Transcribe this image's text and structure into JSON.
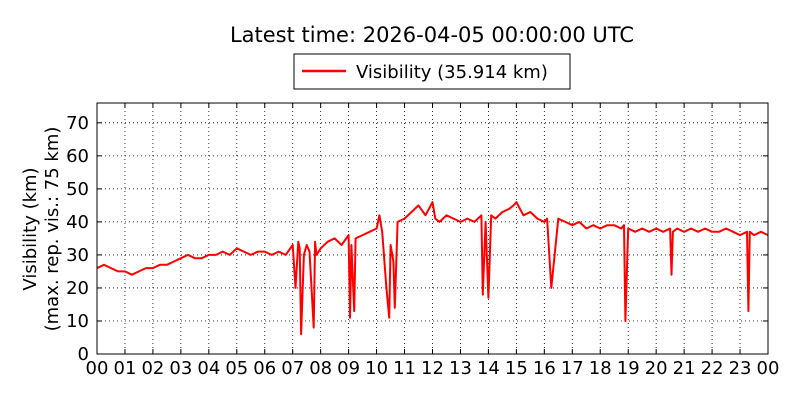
{
  "chart_data": {
    "type": "line",
    "title": "Latest time: 2026-04-05 00:00:00 UTC",
    "xlabel": "",
    "ylabel": [
      "Visibility (km)",
      "(max. rep. vis.: 75 km)"
    ],
    "xlim": [
      0,
      24
    ],
    "ylim": [
      0,
      76
    ],
    "x_ticks": [
      "00",
      "01",
      "02",
      "03",
      "04",
      "05",
      "06",
      "07",
      "08",
      "09",
      "10",
      "11",
      "12",
      "13",
      "14",
      "15",
      "16",
      "17",
      "18",
      "19",
      "20",
      "21",
      "22",
      "23",
      "00"
    ],
    "y_ticks": [
      0,
      10,
      20,
      30,
      40,
      50,
      60,
      70
    ],
    "grid": true,
    "legend": {
      "position": "top-center",
      "entries": [
        "Visibility (35.914 km)"
      ]
    },
    "series": [
      {
        "name": "Visibility (35.914 km)",
        "color": "#ff0000",
        "x": [
          0.0,
          0.25,
          0.5,
          0.75,
          1.0,
          1.25,
          1.5,
          1.75,
          2.0,
          2.25,
          2.5,
          2.75,
          3.0,
          3.25,
          3.5,
          3.75,
          4.0,
          4.25,
          4.5,
          4.75,
          5.0,
          5.25,
          5.5,
          5.75,
          6.0,
          6.25,
          6.5,
          6.75,
          7.0,
          7.1,
          7.2,
          7.25,
          7.3,
          7.4,
          7.5,
          7.6,
          7.75,
          7.8,
          7.85,
          8.0,
          8.25,
          8.5,
          8.75,
          9.0,
          9.05,
          9.1,
          9.2,
          9.25,
          9.5,
          9.75,
          10.0,
          10.1,
          10.2,
          10.35,
          10.45,
          10.5,
          10.6,
          10.65,
          10.75,
          11.0,
          11.25,
          11.5,
          11.75,
          12.0,
          12.1,
          12.25,
          12.5,
          12.75,
          13.0,
          13.25,
          13.5,
          13.75,
          13.8,
          13.9,
          14.0,
          14.1,
          14.25,
          14.5,
          14.75,
          14.9,
          15.0,
          15.25,
          15.5,
          15.75,
          16.0,
          16.1,
          16.25,
          16.5,
          16.75,
          17.0,
          17.25,
          17.5,
          17.75,
          18.0,
          18.25,
          18.5,
          18.75,
          18.85,
          18.9,
          19.0,
          19.25,
          19.5,
          19.75,
          20.0,
          20.25,
          20.5,
          20.55,
          20.6,
          20.75,
          21.0,
          21.25,
          21.5,
          21.75,
          22.0,
          22.25,
          22.5,
          22.75,
          23.0,
          23.25,
          23.3,
          23.35,
          23.5,
          23.75,
          24.0
        ],
        "y": [
          26,
          27,
          26,
          25,
          25,
          24,
          25,
          26,
          26,
          27,
          27,
          28,
          29,
          30,
          29,
          29,
          30,
          30,
          31,
          30,
          32,
          31,
          30,
          31,
          31,
          30,
          31,
          30,
          33,
          20,
          34,
          32,
          6,
          30,
          33,
          31,
          8,
          34,
          30,
          32,
          34,
          35,
          33,
          36,
          11,
          33,
          13,
          35,
          36,
          37,
          38,
          42,
          37,
          20,
          11,
          33,
          28,
          14,
          40,
          41,
          43,
          45,
          42,
          46,
          41,
          40,
          42,
          41,
          40,
          41,
          40,
          42,
          18,
          40,
          17,
          42,
          41,
          43,
          44,
          45,
          46,
          42,
          43,
          41,
          40,
          41,
          20,
          41,
          40,
          39,
          40,
          38,
          39,
          38,
          39,
          39,
          38,
          39,
          10,
          38,
          37,
          38,
          37,
          38,
          37,
          38,
          24,
          37,
          38,
          37,
          38,
          37,
          38,
          37,
          37,
          38,
          37,
          36,
          37,
          13,
          37,
          36,
          37,
          36
        ]
      }
    ]
  }
}
